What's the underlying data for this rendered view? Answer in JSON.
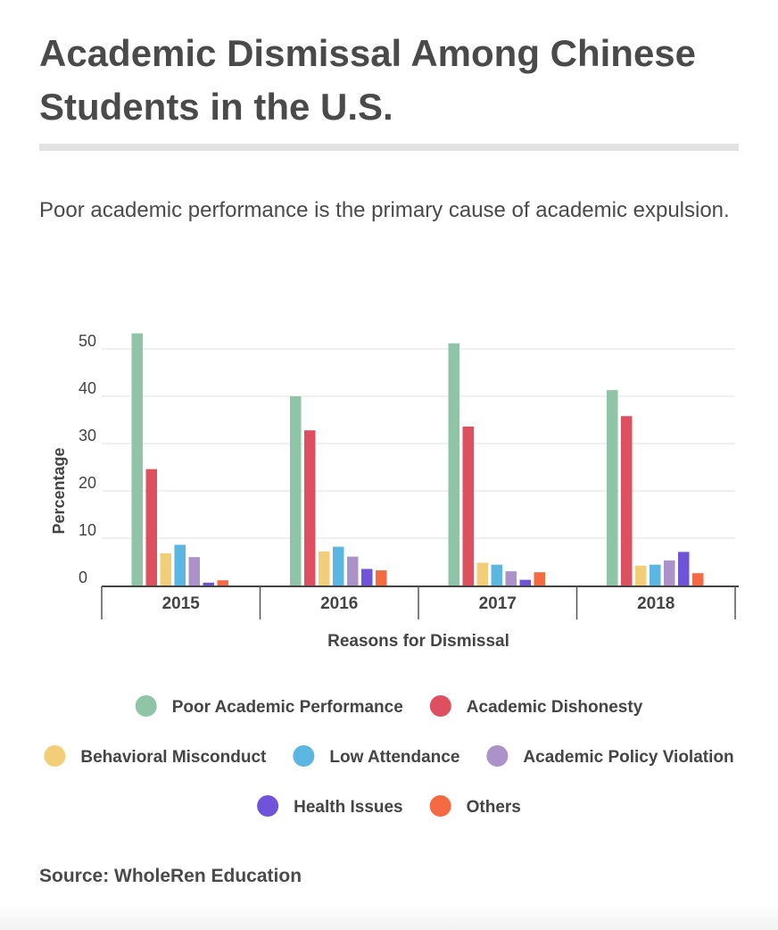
{
  "header": {
    "title": "Academic Dismissal Among Chinese Students in the U.S.",
    "subtitle": "Poor academic performance is the primary cause of academic expulsion."
  },
  "footer": {
    "source": "Source: WholeRen Education"
  },
  "chart_data": {
    "type": "bar",
    "title": "",
    "xlabel": "Reasons for Dismissal",
    "ylabel": "Percentage",
    "ylim": [
      0,
      50
    ],
    "yticks": [
      0,
      10,
      20,
      30,
      40,
      50
    ],
    "grid": true,
    "legend_position": "bottom",
    "categories": [
      "2015",
      "2016",
      "2017",
      "2018"
    ],
    "series": [
      {
        "name": "Poor Academic Performance",
        "color": "#8fc4a6",
        "values": [
          53.3,
          40.0,
          51.2,
          41.3
        ]
      },
      {
        "name": "Academic Dishonesty",
        "color": "#dc5060",
        "values": [
          24.6,
          32.8,
          33.6,
          35.8
        ]
      },
      {
        "name": "Behavioral Misconduct",
        "color": "#f2ce78",
        "values": [
          6.8,
          7.2,
          4.8,
          4.2
        ]
      },
      {
        "name": "Low Attendance",
        "color": "#5bb6e2",
        "values": [
          8.6,
          8.2,
          4.4,
          4.4
        ]
      },
      {
        "name": "Academic Policy Violation",
        "color": "#ab93c9",
        "values": [
          6.0,
          6.1,
          3.0,
          5.3
        ]
      },
      {
        "name": "Health Issues",
        "color": "#6f54d9",
        "values": [
          0.6,
          3.5,
          1.2,
          7.1
        ]
      },
      {
        "name": "Others",
        "color": "#f56a42",
        "values": [
          1.1,
          3.2,
          2.8,
          2.6
        ]
      }
    ]
  }
}
